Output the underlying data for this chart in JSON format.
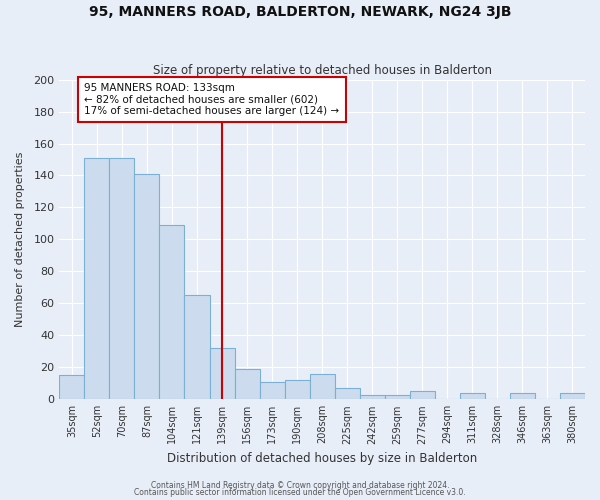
{
  "title": "95, MANNERS ROAD, BALDERTON, NEWARK, NG24 3JB",
  "subtitle": "Size of property relative to detached houses in Balderton",
  "xlabel": "Distribution of detached houses by size in Balderton",
  "ylabel": "Number of detached properties",
  "categories": [
    "35sqm",
    "52sqm",
    "70sqm",
    "87sqm",
    "104sqm",
    "121sqm",
    "139sqm",
    "156sqm",
    "173sqm",
    "190sqm",
    "208sqm",
    "225sqm",
    "242sqm",
    "259sqm",
    "277sqm",
    "294sqm",
    "311sqm",
    "328sqm",
    "346sqm",
    "363sqm",
    "380sqm"
  ],
  "values": [
    15,
    151,
    151,
    141,
    109,
    65,
    32,
    19,
    11,
    12,
    16,
    7,
    3,
    3,
    5,
    0,
    4,
    0,
    4,
    0,
    4
  ],
  "bar_color": "#ccdcee",
  "bar_edge_color": "#7bafd4",
  "vline_x": 6,
  "vline_color": "#cc0000",
  "annotation_text": "95 MANNERS ROAD: 133sqm\n← 82% of detached houses are smaller (602)\n17% of semi-detached houses are larger (124) →",
  "annotation_box_color": "#ffffff",
  "annotation_box_edge": "#cc0000",
  "ylim": [
    0,
    200
  ],
  "yticks": [
    0,
    20,
    40,
    60,
    80,
    100,
    120,
    140,
    160,
    180,
    200
  ],
  "bg_color": "#e8eef8",
  "footer1": "Contains HM Land Registry data © Crown copyright and database right 2024.",
  "footer2": "Contains public sector information licensed under the Open Government Licence v3.0."
}
